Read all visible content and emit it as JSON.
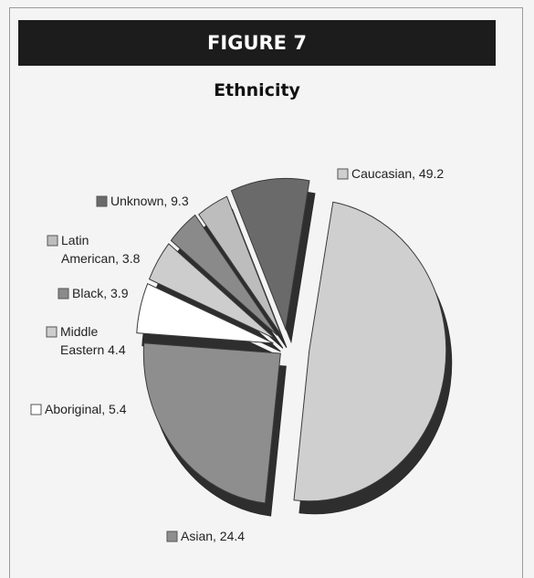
{
  "figure_label": "FIGURE 7",
  "chart_title": "Ethnicity",
  "chart_data": {
    "type": "pie",
    "title": "Ethnicity",
    "exploded": true,
    "three_d": true,
    "legend_placement": "outside labels",
    "series": [
      {
        "name": "Caucasian",
        "value": 49.2,
        "color": "#cfcfcf",
        "label_lines": [
          "Caucasian, 49.2"
        ]
      },
      {
        "name": "Asian",
        "value": 24.4,
        "color": "#8e8e8e",
        "label_lines": [
          "Asian, 24.4"
        ]
      },
      {
        "name": "Aboriginal",
        "value": 5.4,
        "color": "#ffffff",
        "label_lines": [
          "Aboriginal, 5.4"
        ]
      },
      {
        "name": "Middle Eastern",
        "value": 4.4,
        "color": "#cdcdcd",
        "label_lines": [
          "Middle",
          "Eastern 4.4"
        ]
      },
      {
        "name": "Black",
        "value": 3.9,
        "color": "#8a8a8a",
        "label_lines": [
          "Black, 3.9"
        ]
      },
      {
        "name": "Latin American",
        "value": 3.8,
        "color": "#bdbdbd",
        "label_lines": [
          "Latin",
          "American, 3.8"
        ]
      },
      {
        "name": "Unknown",
        "value": 9.3,
        "color": "#6a6a6a",
        "label_lines": [
          "Unknown, 9.3"
        ]
      }
    ]
  }
}
